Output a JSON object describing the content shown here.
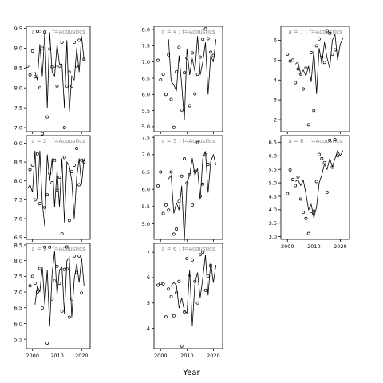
{
  "chart_data": {
    "type": "line",
    "xlabel": "Year",
    "x_ticks": [
      2000,
      2010,
      2020
    ],
    "panels": [
      {
        "title": "a = 1 : f=Acoustics",
        "ylim": [
          6.9,
          9.55
        ],
        "yticks": [
          "7.0",
          "7.5",
          "8.0",
          "8.5",
          "9.0",
          "9.5"
        ],
        "yticks_v": [
          7.0,
          7.5,
          8.0,
          8.5,
          9.0,
          9.5
        ],
        "x": [
          1998,
          1999,
          2000,
          2001,
          2002,
          2003,
          2004,
          2005,
          2006,
          2007,
          2008,
          2009,
          2010,
          2011,
          2012,
          2013,
          2014,
          2015,
          2016,
          2017,
          2018,
          2019,
          2020,
          2021
        ],
        "line": [
          8.4,
          8.2,
          9.1,
          8.3,
          9.4,
          7.5,
          9.4,
          8.4,
          8.3,
          9.1,
          8.6,
          8.6,
          7.5,
          9.2,
          7.4,
          8.3,
          8.2,
          9.0,
          8.4,
          9.3,
          8.7
        ],
        "points": [
          [
            1998,
            8.55
          ],
          [
            1999,
            8.33
          ],
          [
            2000,
            8.93
          ],
          [
            2001,
            8.28
          ],
          [
            2002,
            9.43
          ],
          [
            2003,
            8.0
          ],
          [
            2004,
            9.0
          ],
          [
            2005,
            9.41
          ],
          [
            2006,
            7.27
          ],
          [
            2007,
            8.98
          ],
          [
            2008,
            8.53
          ],
          [
            2009,
            8.55
          ],
          [
            2010,
            8.05
          ],
          [
            2011,
            8.55
          ],
          [
            2012,
            9.15
          ],
          [
            2013,
            7.0
          ],
          [
            2014,
            8.05
          ],
          [
            2015,
            8.4
          ],
          [
            2016,
            8.05
          ],
          [
            2017,
            9.15
          ],
          [
            2018,
            8.55
          ],
          [
            2019,
            9.2
          ],
          [
            2021,
            8.72
          ]
        ]
      },
      {
        "title": "a = 2 : f=Acoustics",
        "ylim": [
          6.45,
          9.2
        ],
        "yticks": [
          "6.5",
          "7.0",
          "7.5",
          "8.0",
          "8.5",
          "9.0"
        ],
        "yticks_v": [
          6.5,
          7.0,
          7.5,
          8.0,
          8.5,
          9.0
        ],
        "line": [
          7.8,
          7.9,
          7.7,
          8.8,
          7.5,
          8.8,
          7.4,
          6.8,
          8.7,
          8.0,
          8.6,
          7.3,
          8.3,
          7.3,
          8.6,
          6.9,
          8.5,
          8.4,
          8.0,
          7.0,
          8.1,
          8.6,
          7.9,
          8.6
        ],
        "points": [
          [
            1999,
            8.3
          ],
          [
            2000,
            8.42
          ],
          [
            2001,
            7.5
          ],
          [
            2002,
            8.72
          ],
          [
            2003,
            7.4
          ],
          [
            2004,
            9.25
          ],
          [
            2005,
            7.3
          ],
          [
            2006,
            7.63
          ],
          [
            2007,
            8.2
          ],
          [
            2008,
            7.95
          ],
          [
            2009,
            8.55
          ],
          [
            2010,
            7.75
          ],
          [
            2011,
            8.1
          ],
          [
            2012,
            6.6
          ],
          [
            2013,
            8.62
          ],
          [
            2014,
            6.25
          ],
          [
            2015,
            6.95
          ],
          [
            2016,
            8.25
          ],
          [
            2017,
            8.42
          ],
          [
            2018,
            8.86
          ],
          [
            2019,
            7.9
          ],
          [
            2020,
            8.55
          ],
          [
            2021,
            8.5
          ]
        ]
      },
      {
        "title": "a = 3 : f=Acoustics",
        "ylim": [
          5.2,
          8.55
        ],
        "yticks": [
          "5.5",
          "6.0",
          "6.5",
          "7.0",
          "7.5",
          "8.0",
          "8.5"
        ],
        "yticks_v": [
          5.5,
          6.0,
          6.5,
          7.0,
          7.5,
          8.0,
          8.5
        ],
        "line": [
          6.6,
          7.2,
          7.0,
          7.8,
          6.6,
          7.7,
          5.9,
          7.6,
          8.3,
          6.9,
          7.7,
          7.8,
          6.3,
          8.0,
          8.1,
          6.2,
          7.4,
          7.9,
          7.3,
          8.1,
          7.2
        ],
        "points": [
          [
            1999,
            7.2
          ],
          [
            2000,
            7.5
          ],
          [
            2001,
            7.28
          ],
          [
            2002,
            7.0
          ],
          [
            2003,
            7.75
          ],
          [
            2004,
            6.5
          ],
          [
            2005,
            8.43
          ],
          [
            2006,
            5.38
          ],
          [
            2007,
            8.43
          ],
          [
            2008,
            6.78
          ],
          [
            2009,
            7.35
          ],
          [
            2010,
            7.82
          ],
          [
            2011,
            7.28
          ],
          [
            2012,
            6.4
          ],
          [
            2013,
            7.72
          ],
          [
            2014,
            7.73
          ],
          [
            2015,
            6.2
          ],
          [
            2016,
            6.78
          ],
          [
            2017,
            8.15
          ],
          [
            2018,
            7.62
          ],
          [
            2019,
            8.15
          ],
          [
            2020,
            6.97
          ]
        ]
      },
      {
        "title": "a = 4 : f=Acoustics",
        "ylim": [
          4.85,
          8.1
        ],
        "yticks": [
          "5.0",
          "5.5",
          "6.0",
          "6.5",
          "7.0",
          "7.5",
          "8.0"
        ],
        "yticks_v": [
          5.0,
          5.5,
          6.0,
          6.5,
          7.0,
          7.5,
          8.0
        ],
        "line": [
          7.7,
          6.4,
          6.3,
          6.1,
          7.2,
          6.3,
          5.2,
          7.4,
          6.6,
          7.1,
          6.7,
          7.8,
          6.6,
          7.0,
          7.6,
          6.0,
          7.2,
          7.0,
          7.7
        ],
        "points": [
          [
            1999,
            7.05
          ],
          [
            2000,
            6.45
          ],
          [
            2001,
            6.62
          ],
          [
            2002,
            6.0
          ],
          [
            2003,
            7.22
          ],
          [
            2004,
            5.85
          ],
          [
            2005,
            4.98
          ],
          [
            2006,
            6.7
          ],
          [
            2007,
            7.45
          ],
          [
            2008,
            5.52
          ],
          [
            2009,
            6.67
          ],
          [
            2010,
            7.12
          ],
          [
            2011,
            5.65
          ],
          [
            2012,
            7.28
          ],
          [
            2013,
            6.02
          ],
          [
            2014,
            6.62
          ],
          [
            2015,
            7.15
          ],
          [
            2016,
            7.7
          ],
          [
            2017,
            8.02
          ],
          [
            2018,
            7.72
          ],
          [
            2019,
            7.3
          ],
          [
            2020,
            7.2
          ]
        ]
      },
      {
        "title": "a = 5 : f=Acoustics",
        "ylim": [
          4.55,
          7.55
        ],
        "yticks": [
          "5.0",
          "5.5",
          "6.0",
          "6.5",
          "7.0",
          "7.5"
        ],
        "yticks_v": [
          5.0,
          5.5,
          6.0,
          6.5,
          7.0,
          7.5
        ],
        "line": [
          6.3,
          6.4,
          5.3,
          5.6,
          5.4,
          6.1,
          4.5,
          6.2,
          6.4,
          6.9,
          6.4,
          6.6,
          5.7,
          6.9,
          7.1,
          5.9,
          6.8,
          7.0,
          6.7
        ],
        "points": [
          [
            1999,
            6.1
          ],
          [
            2000,
            6.5
          ],
          [
            2001,
            5.3
          ],
          [
            2002,
            5.55
          ],
          [
            2003,
            5.4
          ],
          [
            2004,
            6.5
          ],
          [
            2005,
            4.7
          ],
          [
            2006,
            4.85
          ],
          [
            2007,
            5.65
          ],
          [
            2008,
            6.38
          ],
          [
            2009,
            6.88
          ],
          [
            2010,
            6.18
          ],
          [
            2011,
            6.42
          ],
          [
            2012,
            5.55
          ],
          [
            2013,
            6.52
          ],
          [
            2014,
            7.35
          ],
          [
            2015,
            5.8
          ],
          [
            2016,
            6.15
          ],
          [
            2017,
            7.0
          ],
          [
            2018,
            6.72
          ]
        ]
      },
      {
        "title": "a = 6 : f=Acoustics",
        "ylim": [
          3.2,
          7.35
        ],
        "yticks": [
          "4",
          "5",
          "6",
          "7"
        ],
        "yticks_v": [
          4,
          5,
          6,
          7
        ],
        "line": [
          5.7,
          5.8,
          5.7,
          4.8,
          5.2,
          4.7,
          4.6,
          6.3,
          4.1,
          5.8,
          6.2,
          5.2,
          6.0,
          6.9,
          5.3,
          6.6,
          5.8,
          6.5
        ],
        "points": [
          [
            1999,
            5.7
          ],
          [
            2000,
            5.78
          ],
          [
            2001,
            5.75
          ],
          [
            2002,
            4.45
          ],
          [
            2003,
            5.55
          ],
          [
            2004,
            5.25
          ],
          [
            2005,
            4.5
          ],
          [
            2006,
            5.4
          ],
          [
            2007,
            5.85
          ],
          [
            2008,
            3.3
          ],
          [
            2009,
            4.65
          ],
          [
            2010,
            6.75
          ],
          [
            2011,
            6.1
          ],
          [
            2012,
            6.7
          ],
          [
            2013,
            5.85
          ],
          [
            2014,
            5.0
          ],
          [
            2015,
            6.9
          ],
          [
            2016,
            7.0
          ],
          [
            2017,
            5.5
          ],
          [
            2018,
            6.05
          ],
          [
            2019,
            6.48
          ]
        ]
      },
      {
        "title": "a = 7 : f=Acoustics",
        "ylim": [
          1.4,
          6.7
        ],
        "yticks": [
          "2",
          "3",
          "4",
          "5",
          "6"
        ],
        "yticks_v": [
          2,
          3,
          4,
          5,
          6
        ],
        "line": [
          4.8,
          4.9,
          4.3,
          4.5,
          4.2,
          4.7,
          3.9,
          5.5,
          3.3,
          5.6,
          4.8,
          5.9,
          5.1,
          4.6,
          6.0,
          6.3,
          5.0,
          5.8,
          6.1
        ],
        "points": [
          [
            2000,
            5.3
          ],
          [
            2001,
            4.95
          ],
          [
            2002,
            5.0
          ],
          [
            2003,
            3.87
          ],
          [
            2004,
            4.55
          ],
          [
            2005,
            4.3
          ],
          [
            2006,
            3.55
          ],
          [
            2007,
            4.6
          ],
          [
            2008,
            1.75
          ],
          [
            2009,
            5.38
          ],
          [
            2010,
            2.47
          ],
          [
            2011,
            5.72
          ],
          [
            2012,
            6.07
          ],
          [
            2013,
            5.15
          ],
          [
            2014,
            4.88
          ],
          [
            2015,
            6.48
          ],
          [
            2016,
            6.35
          ],
          [
            2017,
            5.3
          ],
          [
            2018,
            5.52
          ]
        ]
      },
      {
        "title": "a = 8 : f=Acoustics",
        "ylim": [
          2.9,
          6.75
        ],
        "yticks": [
          "3.0",
          "3.5",
          "4.0",
          "4.5",
          "5.0",
          "5.5",
          "6.0",
          "6.5"
        ],
        "yticks_v": [
          3.0,
          3.5,
          4.0,
          4.5,
          5.0,
          5.5,
          6.0,
          6.5
        ],
        "line": [
          5.05,
          5.1,
          4.9,
          5.1,
          4.6,
          4.0,
          4.2,
          3.7,
          4.1,
          5.0,
          5.3,
          5.7,
          5.5,
          5.9,
          5.6,
          5.9,
          6.2,
          6.0,
          6.2
        ],
        "points": [
          [
            2000,
            4.6
          ],
          [
            2001,
            5.48
          ],
          [
            2002,
            5.12
          ],
          [
            2003,
            4.9
          ],
          [
            2004,
            5.22
          ],
          [
            2005,
            4.4
          ],
          [
            2006,
            3.9
          ],
          [
            2007,
            3.68
          ],
          [
            2008,
            3.12
          ],
          [
            2009,
            3.85
          ],
          [
            2010,
            3.95
          ],
          [
            2011,
            5.05
          ],
          [
            2012,
            6.05
          ],
          [
            2013,
            5.9
          ],
          [
            2014,
            5.75
          ],
          [
            2015,
            4.65
          ],
          [
            2016,
            6.58
          ],
          [
            2017,
            5.58
          ],
          [
            2018,
            6.6
          ],
          [
            2019,
            6.0
          ]
        ]
      }
    ]
  }
}
